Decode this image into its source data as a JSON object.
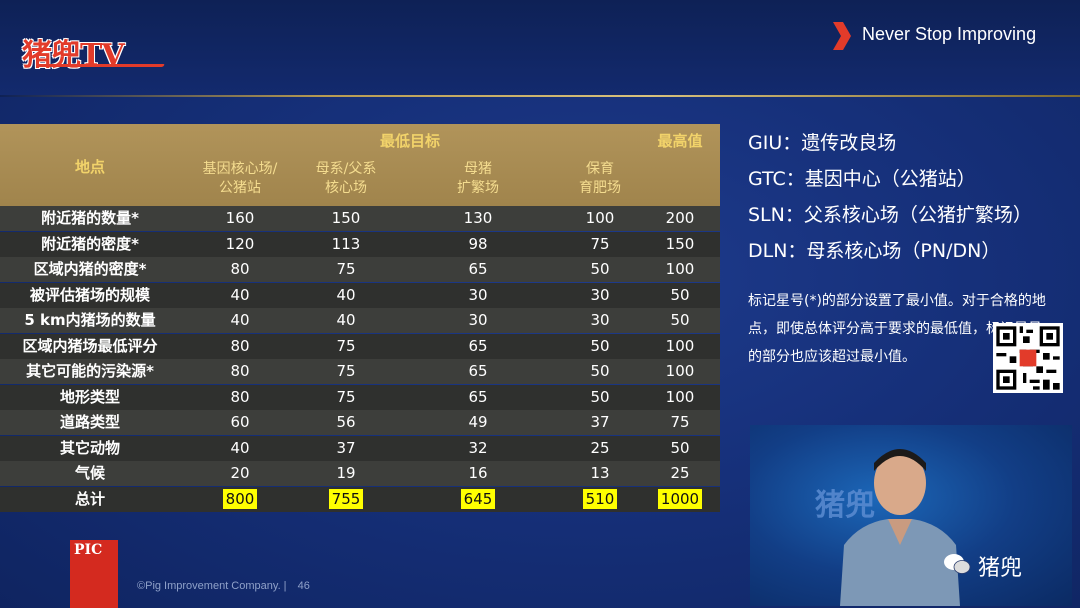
{
  "header": {
    "logo_text": "猪兜TV",
    "tagline": "Never Stop Improving"
  },
  "table": {
    "location_header": "地点",
    "min_group_header": "最低目标",
    "max_header": "最高值",
    "sub_headers": [
      [
        "基因核心场/",
        "公猪站"
      ],
      [
        "母系/父系",
        "核心场"
      ],
      [
        "母猪",
        "扩繁场"
      ],
      [
        "保育",
        "育肥场"
      ]
    ],
    "rows": [
      {
        "label": "附近猪的数量*",
        "values": [
          "160",
          "150",
          "130",
          "100",
          "200"
        ]
      },
      {
        "label": "附近猪的密度*",
        "values": [
          "120",
          "113",
          "98",
          "75",
          "150"
        ]
      },
      {
        "label": "区域内猪的密度*",
        "values": [
          "80",
          "75",
          "65",
          "50",
          "100"
        ]
      },
      {
        "label": "被评估猪场的规模",
        "values": [
          "40",
          "40",
          "30",
          "30",
          "50"
        ]
      },
      {
        "label": "5 km内猪场的数量",
        "values": [
          "40",
          "40",
          "30",
          "30",
          "50"
        ]
      },
      {
        "label": "区域内猪场最低评分",
        "values": [
          "80",
          "75",
          "65",
          "50",
          "100"
        ]
      },
      {
        "label": "其它可能的污染源*",
        "values": [
          "80",
          "75",
          "65",
          "50",
          "100"
        ]
      },
      {
        "label": "地形类型",
        "values": [
          "80",
          "75",
          "65",
          "50",
          "100"
        ]
      },
      {
        "label": "道路类型",
        "values": [
          "60",
          "56",
          "49",
          "37",
          "75"
        ]
      },
      {
        "label": "其它动物",
        "values": [
          "40",
          "37",
          "32",
          "25",
          "50"
        ]
      },
      {
        "label": "气候",
        "values": [
          "20",
          "19",
          "16",
          "13",
          "25"
        ]
      }
    ],
    "total": {
      "label": "总计",
      "values": [
        "800",
        "755",
        "645",
        "510",
        "1000"
      ]
    }
  },
  "legend": [
    "GIU：遗传改良场",
    "GTC：基因中心（公猪站）",
    "SLN：父系核心场（公猪扩繁场）",
    "DLN：母系核心场（PN/DN）"
  ],
  "note": "标记星号(*)的部分设置了最小值。对于合格的地点，即使总体评分高于要求的最低值，标记星号的部分也应该超过最小值。",
  "video": {
    "bg_text": "猪兜"
  },
  "watermark": "猪兜",
  "footer": {
    "pic_logo": "PIC",
    "copyright": "©Pig Improvement Company.  |",
    "page": "46"
  },
  "colors": {
    "accent_gold": "#f2d36a",
    "total_highlight": "#ffff00",
    "brand_red": "#e23b2a"
  }
}
